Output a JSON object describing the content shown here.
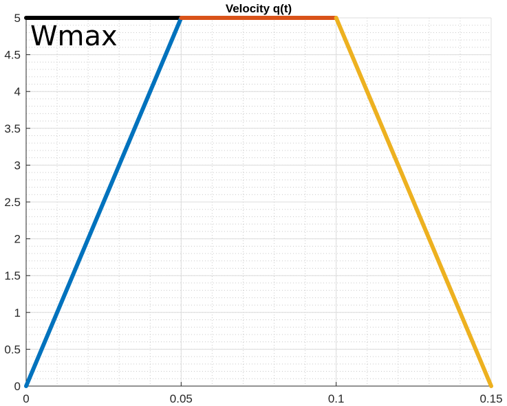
{
  "chart_data": {
    "type": "line",
    "title": "Velocity q(t)",
    "xlabel": "",
    "ylabel": "",
    "xlim": [
      0,
      0.15
    ],
    "ylim": [
      0,
      5
    ],
    "xticks": [
      0,
      0.05,
      0.1,
      0.15
    ],
    "xtick_labels": [
      "0",
      "0.05",
      "0.1",
      "0.15"
    ],
    "yticks": [
      0,
      0.5,
      1,
      1.5,
      2,
      2.5,
      3,
      3.5,
      4,
      4.5,
      5
    ],
    "ytick_labels": [
      "0",
      "0.5",
      "1",
      "1.5",
      "2",
      "2.5",
      "3",
      "3.5",
      "4",
      "4.5",
      "5"
    ],
    "grid": true,
    "minor_grid": true,
    "series": [
      {
        "x": [
          0,
          0.05
        ],
        "y": [
          5,
          5
        ],
        "color": "#000000"
      },
      {
        "x": [
          0,
          0.05
        ],
        "y": [
          0,
          5
        ],
        "color": "#0072BD"
      },
      {
        "x": [
          0.05,
          0.1
        ],
        "y": [
          5,
          5
        ],
        "color": "#D95319"
      },
      {
        "x": [
          0.1,
          0.15
        ],
        "y": [
          5,
          0
        ],
        "color": "#EDB120"
      }
    ],
    "annotations": [
      {
        "text": "Wmax",
        "x": 0,
        "y": 5
      }
    ]
  }
}
